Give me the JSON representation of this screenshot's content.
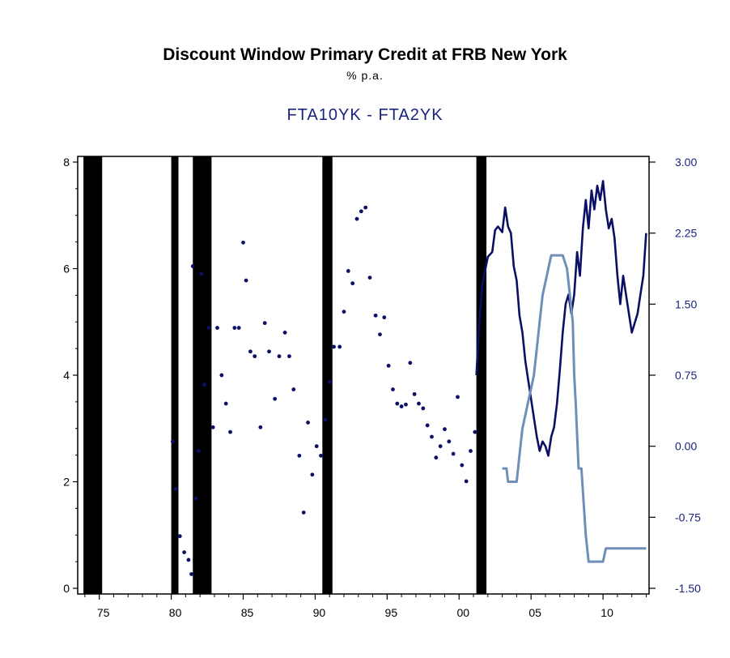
{
  "chart_data": {
    "type": "line",
    "title": "Discount Window Primary Credit at FRB New York",
    "subtitle": "% p.a.",
    "series_title": "FTA10YK - FTA2YK",
    "x_ticks": [
      "75",
      "80",
      "85",
      "90",
      "95",
      "00",
      "05",
      "10"
    ],
    "x_range": [
      1973.5,
      2013.2
    ],
    "y_left_ticks": [
      "0",
      "2",
      "4",
      "6",
      "8"
    ],
    "y_left_range": [
      0,
      8
    ],
    "y_right_ticks": [
      "-1.50",
      "-0.75",
      "0.00",
      "0.75",
      "1.50",
      "2.25",
      "3.00"
    ],
    "y_right_range": [
      -1.5,
      3.0
    ],
    "grid": false,
    "recessions": [
      [
        1973.9,
        1975.2
      ],
      [
        1980.0,
        1980.5
      ],
      [
        1981.5,
        1982.8
      ],
      [
        1990.5,
        1991.2
      ],
      [
        2001.2,
        2001.9
      ]
    ],
    "colors": {
      "recession": "#000000",
      "spread": "#0b1066",
      "primary_credit": "#6f8fb8",
      "axis": "#000000"
    },
    "series": [
      {
        "axis": "right",
        "style": "dots",
        "x": [
          1980.1,
          1980.3,
          1980.6,
          1980.9,
          1981.2,
          1981.4,
          1981.5,
          1981.7,
          1981.9,
          1982.1,
          1982.3,
          1982.6,
          1982.9,
          1983.2,
          1983.5,
          1983.8,
          1984.1,
          1984.4,
          1984.7,
          1985.0,
          1985.2,
          1985.5,
          1985.8,
          1986.2,
          1986.5,
          1986.8,
          1987.2,
          1987.5,
          1987.9,
          1988.2,
          1988.5,
          1988.9,
          1989.2,
          1989.5,
          1989.8,
          1990.1,
          1990.4,
          1990.7,
          1991.0,
          1991.3,
          1991.7,
          1992.0,
          1992.3,
          1992.6,
          1992.9,
          1993.2,
          1993.5,
          1993.8,
          1994.2,
          1994.5,
          1994.8,
          1995.1,
          1995.4,
          1995.7,
          1996.0,
          1996.3,
          1996.6,
          1996.9,
          1997.2,
          1997.5,
          1997.8,
          1998.1,
          1998.4,
          1998.7,
          1999.0,
          1999.3,
          1999.6,
          1999.9,
          2000.2,
          2000.5,
          2000.8,
          2001.1
        ],
        "y": [
          0.05,
          -0.45,
          -0.95,
          -1.12,
          -1.2,
          -1.35,
          1.9,
          -0.55,
          -0.05,
          1.82,
          0.65,
          1.25,
          0.2,
          1.25,
          0.75,
          0.45,
          0.15,
          1.25,
          1.25,
          2.15,
          1.75,
          1.0,
          0.95,
          0.2,
          1.3,
          1.0,
          0.5,
          0.95,
          1.2,
          0.95,
          0.6,
          -0.1,
          -0.7,
          0.25,
          -0.3,
          0.0,
          -0.1,
          0.28,
          0.68,
          1.05,
          1.05,
          1.42,
          1.85,
          1.72,
          2.4,
          2.48,
          2.52,
          1.78,
          1.38,
          1.18,
          1.36,
          0.85,
          0.6,
          0.45,
          0.42,
          0.44,
          0.88,
          0.55,
          0.45,
          0.4,
          0.22,
          0.1,
          -0.12,
          0.0,
          0.18,
          0.05,
          -0.08,
          0.52,
          -0.2,
          -0.37,
          -0.05,
          0.15
        ]
      },
      {
        "axis": "right",
        "style": "line",
        "x": [
          2001.2,
          2001.4,
          2001.6,
          2001.8,
          2002.0,
          2002.3,
          2002.5,
          2002.7,
          2003.0,
          2003.2,
          2003.4,
          2003.6,
          2003.8,
          2004.0,
          2004.2,
          2004.4,
          2004.6,
          2004.8,
          2005.0,
          2005.2,
          2005.4,
          2005.6,
          2005.8,
          2006.0,
          2006.2,
          2006.4,
          2006.6,
          2006.8,
          2007.0,
          2007.2,
          2007.4,
          2007.6,
          2007.8,
          2008.0,
          2008.2,
          2008.4,
          2008.6,
          2008.8,
          2009.0,
          2009.2,
          2009.4,
          2009.6,
          2009.8,
          2010.0,
          2010.2,
          2010.4,
          2010.6,
          2010.8,
          2011.0,
          2011.2,
          2011.4,
          2011.6,
          2011.8,
          2012.0,
          2012.2,
          2012.4,
          2012.6,
          2012.8,
          2013.0
        ],
        "y": [
          0.75,
          1.3,
          1.7,
          1.85,
          2.0,
          2.05,
          2.28,
          2.32,
          2.26,
          2.52,
          2.32,
          2.25,
          1.9,
          1.75,
          1.38,
          1.2,
          0.9,
          0.7,
          0.5,
          0.3,
          0.1,
          -0.05,
          0.05,
          0.0,
          -0.1,
          0.1,
          0.2,
          0.45,
          0.8,
          1.2,
          1.5,
          1.6,
          1.4,
          1.6,
          2.05,
          1.8,
          2.3,
          2.6,
          2.3,
          2.7,
          2.5,
          2.75,
          2.6,
          2.8,
          2.5,
          2.3,
          2.4,
          2.2,
          1.8,
          1.5,
          1.8,
          1.6,
          1.4,
          1.2,
          1.3,
          1.4,
          1.6,
          1.8,
          2.25
        ]
      },
      {
        "axis": "left",
        "style": "line",
        "x": [
          2003.0,
          2003.3,
          2003.4,
          2004.0,
          2004.2,
          2004.4,
          2004.6,
          2004.8,
          2005.0,
          2005.2,
          2005.4,
          2005.6,
          2005.8,
          2006.0,
          2006.2,
          2006.4,
          2006.6,
          2006.9,
          2007.2,
          2007.5,
          2007.7,
          2007.9,
          2008.0,
          2008.1,
          2008.3,
          2008.5,
          2008.8,
          2009.0,
          2009.3,
          2009.6,
          2009.8,
          2010.0,
          2010.2,
          2011.0,
          2012.0,
          2013.0
        ],
        "y": [
          2.25,
          2.25,
          2.0,
          2.0,
          2.5,
          3.0,
          3.25,
          3.5,
          3.75,
          4.0,
          4.5,
          5.0,
          5.5,
          5.75,
          6.0,
          6.25,
          6.25,
          6.25,
          6.25,
          6.0,
          5.5,
          5.0,
          4.0,
          3.5,
          2.25,
          2.25,
          1.0,
          0.5,
          0.5,
          0.5,
          0.5,
          0.5,
          0.75,
          0.75,
          0.75,
          0.75
        ]
      }
    ]
  }
}
